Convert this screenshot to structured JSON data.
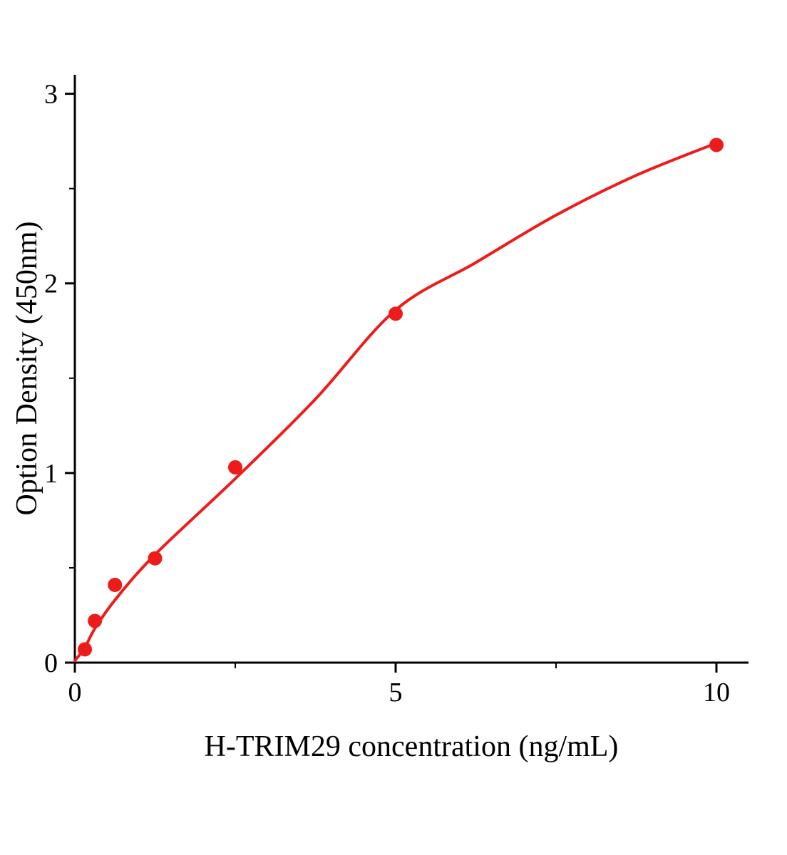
{
  "chart_data": {
    "type": "scatter",
    "title": "",
    "xlabel": "H-TRIM29 concentration (ng/mL)",
    "ylabel": "Option Density (450nm)",
    "xlim": [
      0,
      10.5
    ],
    "ylim": [
      0,
      3.1
    ],
    "x_major_ticks": [
      0,
      5,
      10
    ],
    "x_minor_ticks": [
      2.5,
      7.5
    ],
    "y_major_ticks": [
      0,
      1,
      2,
      3
    ],
    "y_minor_ticks": [
      0.5,
      1.5,
      2.5
    ],
    "grid": false,
    "legend_position": "none",
    "background_color": "#ffffff",
    "axis_color": "#000000",
    "point_color": "#ee1b1b",
    "line_color": "#ee1b1b",
    "series": [
      {
        "name": "H-TRIM29 standard points",
        "x": [
          0.156,
          0.3125,
          0.625,
          1.25,
          2.5,
          5,
          10
        ],
        "y": [
          0.07,
          0.22,
          0.41,
          0.55,
          1.03,
          1.84,
          2.73
        ]
      }
    ],
    "fit_curve": {
      "name": "fitted standard curve",
      "x": [
        0,
        0.156,
        0.3125,
        0.625,
        1.25,
        2.5,
        3.75,
        5,
        6.25,
        7.5,
        8.75,
        10
      ],
      "y": [
        0.01,
        0.08,
        0.18,
        0.33,
        0.57,
        0.97,
        1.39,
        1.86,
        2.11,
        2.36,
        2.57,
        2.74
      ]
    }
  }
}
